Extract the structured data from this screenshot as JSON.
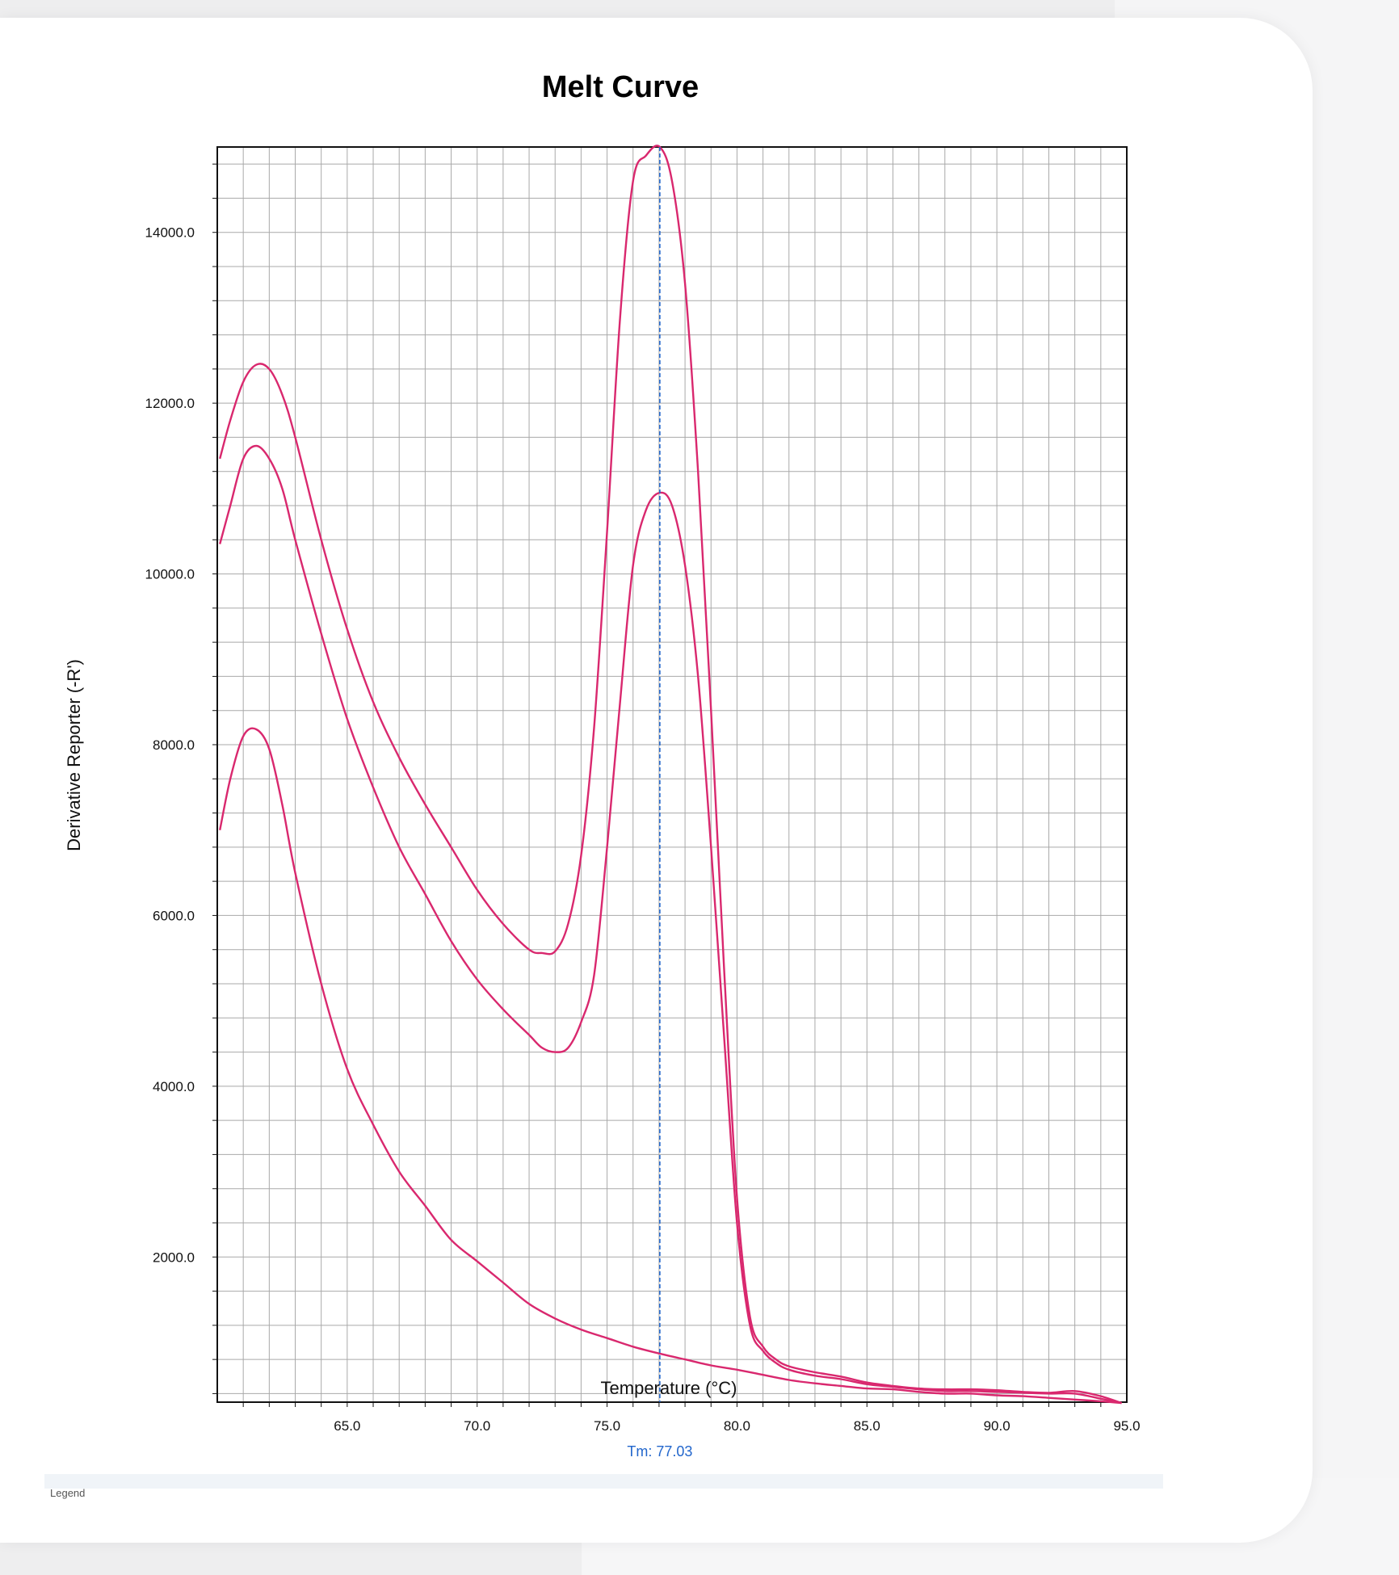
{
  "chart_data": {
    "type": "line",
    "title": "Melt Curve",
    "xlabel": "Temperature (°C)",
    "ylabel": "Derivative Reporter (-R')",
    "xlim": [
      60.0,
      95.0
    ],
    "ylim": [
      300,
      15000
    ],
    "x_ticks": [
      65.0,
      70.0,
      75.0,
      80.0,
      85.0,
      90.0,
      95.0
    ],
    "x_tick_labels": [
      "65.0",
      "70.0",
      "75.0",
      "80.0",
      "85.0",
      "90.0",
      "95.0"
    ],
    "y_ticks": [
      2000,
      4000,
      6000,
      8000,
      10000,
      12000,
      14000
    ],
    "y_tick_labels": [
      "2000.0",
      "4000.0",
      "6000.0",
      "8000.0",
      "10000.0",
      "12000.0",
      "14000.0"
    ],
    "grid": true,
    "legend_stub": "Legend",
    "tm_marker": {
      "x": 77.03,
      "label": "Tm: 77.03",
      "color": "#2266cc"
    },
    "line_color": "#d9286e",
    "series": [
      {
        "x": [
          60.1,
          60.5,
          61.0,
          61.5,
          62.0,
          62.5,
          63.0,
          64.0,
          65.0,
          66.0,
          67.0,
          68.0,
          69.0,
          70.0,
          71.0,
          72.0,
          72.5,
          73.0,
          73.5,
          74.0,
          74.5,
          75.0,
          75.5,
          76.0,
          76.5,
          77.03,
          77.5,
          78.0,
          78.5,
          79.0,
          79.5,
          80.0,
          80.5,
          81.0,
          81.5,
          82.0,
          83.0,
          84.0,
          85.0,
          86.0,
          87.0,
          88.0,
          89.0,
          90.0,
          91.0,
          92.0,
          93.0,
          94.0,
          94.8
        ],
        "values": [
          11350,
          11800,
          12250,
          12450,
          12400,
          12100,
          11600,
          10400,
          9350,
          8500,
          7850,
          7300,
          6800,
          6300,
          5900,
          5600,
          5560,
          5580,
          5900,
          6700,
          8200,
          10500,
          13000,
          14600,
          14900,
          15000,
          14600,
          13400,
          11200,
          8400,
          5400,
          2700,
          1300,
          950,
          800,
          720,
          650,
          600,
          530,
          490,
          460,
          450,
          450,
          440,
          420,
          410,
          430,
          370,
          290
        ]
      },
      {
        "x": [
          60.1,
          60.5,
          61.0,
          61.5,
          62.0,
          62.5,
          63.0,
          64.0,
          65.0,
          66.0,
          67.0,
          68.0,
          69.0,
          70.0,
          71.0,
          72.0,
          72.5,
          73.0,
          73.5,
          74.0,
          74.5,
          75.0,
          75.5,
          76.0,
          76.5,
          77.03,
          77.5,
          78.0,
          78.5,
          79.0,
          79.5,
          80.0,
          80.5,
          81.0,
          81.5,
          82.0,
          83.0,
          84.0,
          85.0,
          86.0,
          87.0,
          88.0,
          89.0,
          90.0,
          91.0,
          92.0,
          93.0,
          94.0,
          94.8
        ],
        "values": [
          10350,
          10800,
          11350,
          11500,
          11350,
          11000,
          10400,
          9300,
          8300,
          7500,
          6800,
          6250,
          5700,
          5250,
          4900,
          4600,
          4450,
          4400,
          4450,
          4750,
          5300,
          6800,
          8500,
          10100,
          10750,
          10950,
          10800,
          10100,
          8800,
          6800,
          4600,
          2400,
          1200,
          900,
          760,
          680,
          610,
          570,
          510,
          480,
          450,
          430,
          430,
          420,
          410,
          400,
          400,
          340,
          290
        ]
      },
      {
        "x": [
          60.1,
          60.5,
          61.0,
          61.5,
          62.0,
          62.5,
          63.0,
          64.0,
          65.0,
          66.0,
          67.0,
          68.0,
          69.0,
          70.0,
          71.0,
          72.0,
          73.0,
          74.0,
          75.0,
          76.0,
          77.0,
          78.0,
          79.0,
          80.0,
          81.0,
          82.0,
          83.0,
          84.0,
          85.0,
          86.0,
          87.0,
          88.0,
          89.0,
          90.0,
          91.0,
          92.0,
          93.0,
          94.0,
          94.8
        ],
        "values": [
          7000,
          7600,
          8100,
          8180,
          7950,
          7300,
          6500,
          5200,
          4200,
          3550,
          3000,
          2600,
          2200,
          1950,
          1700,
          1450,
          1280,
          1150,
          1050,
          950,
          870,
          800,
          730,
          680,
          620,
          560,
          520,
          490,
          460,
          450,
          420,
          400,
          400,
          380,
          370,
          350,
          330,
          310,
          290
        ]
      }
    ]
  }
}
